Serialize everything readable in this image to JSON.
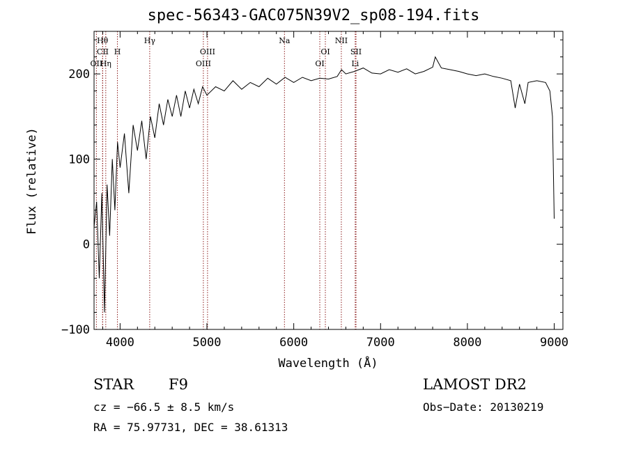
{
  "chart_data": {
    "type": "line",
    "title": "spec-56343-GAC075N39V2_sp08-194.fits",
    "xlabel": "Wavelength (Å)",
    "ylabel": "Flux (relative)",
    "xlim": [
      3700,
      9100
    ],
    "ylim": [
      -100,
      250
    ],
    "x_ticks": [
      4000,
      5000,
      6000,
      7000,
      8000,
      9000
    ],
    "x_tick_labels": [
      "4000",
      "5000",
      "6000",
      "7000",
      "8000",
      "9000"
    ],
    "y_ticks": [
      -100,
      0,
      100,
      200
    ],
    "y_tick_labels": [
      "−100",
      "0",
      "100",
      "200"
    ],
    "grid": false,
    "legend": "none",
    "line_color": "#000000",
    "marker_color": "#8b1a1a",
    "series": [
      {
        "x": [
          3700,
          3730,
          3760,
          3790,
          3820,
          3850,
          3880,
          3910,
          3940,
          3970,
          4000,
          4050,
          4100,
          4150,
          4200,
          4250,
          4300,
          4350,
          4400,
          4450,
          4500,
          4550,
          4600,
          4650,
          4700,
          4750,
          4800,
          4850,
          4900,
          4950,
          5000,
          5100,
          5200,
          5300,
          5400,
          5500,
          5600,
          5700,
          5800,
          5900,
          6000,
          6100,
          6200,
          6300,
          6400,
          6500,
          6550,
          6600,
          6700,
          6800,
          6900,
          7000,
          7100,
          7200,
          7300,
          7400,
          7500,
          7600,
          7630,
          7700,
          7800,
          7900,
          8000,
          8100,
          8200,
          8300,
          8400,
          8500,
          8550,
          8600,
          8662,
          8700,
          8800,
          8900,
          8950,
          8980,
          9000
        ],
        "y": [
          20,
          50,
          -40,
          60,
          -80,
          70,
          10,
          100,
          40,
          120,
          90,
          130,
          60,
          140,
          110,
          145,
          100,
          150,
          125,
          165,
          140,
          170,
          150,
          175,
          150,
          180,
          160,
          182,
          165,
          185,
          175,
          185,
          180,
          192,
          182,
          190,
          185,
          195,
          188,
          196,
          190,
          196,
          192,
          195,
          194,
          197,
          205,
          200,
          203,
          207,
          201,
          200,
          205,
          202,
          206,
          200,
          203,
          208,
          220,
          207,
          205,
          203,
          200,
          198,
          200,
          197,
          195,
          192,
          160,
          188,
          165,
          190,
          192,
          190,
          180,
          150,
          30
        ]
      }
    ],
    "line_markers": [
      {
        "label": "Hθ",
        "x": 3798
      },
      {
        "label": "CII",
        "x": 3800
      },
      {
        "label": "OII",
        "x": 3727
      },
      {
        "label": "Hη",
        "x": 3835
      },
      {
        "label": "H",
        "x": 3969
      },
      {
        "label": "Hγ",
        "x": 4341
      },
      {
        "label": "OIII",
        "x": 5007
      },
      {
        "label": "OIII",
        "x": 4959
      },
      {
        "label": "Na",
        "x": 5893
      },
      {
        "label": "OI",
        "x": 6364
      },
      {
        "label": "OI",
        "x": 6300
      },
      {
        "label": "NII",
        "x": 6548
      },
      {
        "label": "SII",
        "x": 6717
      },
      {
        "label": "Li",
        "x": 6708
      }
    ]
  },
  "footer": {
    "class_label": "STAR",
    "subclass": "F9",
    "survey": "LAMOST DR2",
    "cz_text": "cz = −66.5 ± 8.5 km/s",
    "obs_date": "Obs−Date: 20130219",
    "radec_text": "RA =  75.97731, DEC =  38.61313"
  }
}
